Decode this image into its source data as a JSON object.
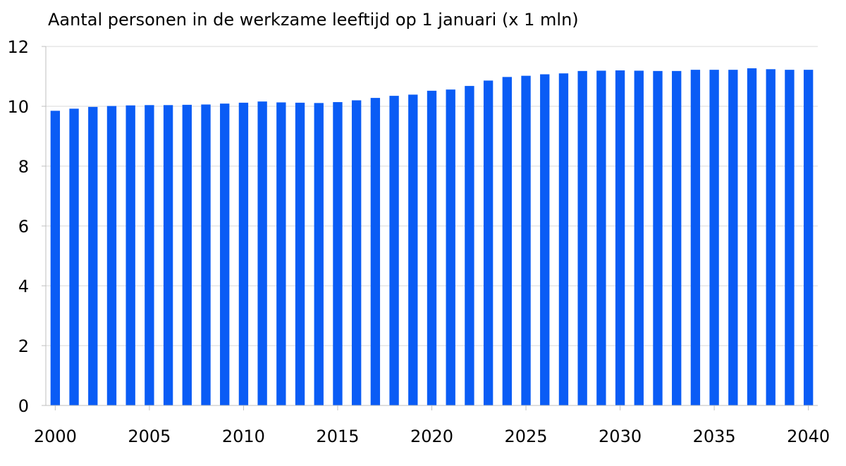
{
  "chart_data": {
    "type": "bar",
    "title": "Aantal personen in de werkzame leeftijd op 1 januari (x 1 mln)",
    "xlabel": "",
    "ylabel": "",
    "ylim": [
      0,
      12
    ],
    "y_ticks": [
      0,
      2,
      4,
      6,
      8,
      10,
      12
    ],
    "x_tick_labels": [
      "2000",
      "2005",
      "2010",
      "2015",
      "2020",
      "2025",
      "2030",
      "2035",
      "2040"
    ],
    "grid": true,
    "legend": "none",
    "bar_color": "#0a5cf5",
    "categories": [
      "2000",
      "2001",
      "2002",
      "2003",
      "2004",
      "2005",
      "2006",
      "2007",
      "2008",
      "2009",
      "2010",
      "2011",
      "2012",
      "2013",
      "2014",
      "2015",
      "2016",
      "2017",
      "2018",
      "2019",
      "2020",
      "2021",
      "2022",
      "2023",
      "2024",
      "2025",
      "2026",
      "2027",
      "2028",
      "2029",
      "2030",
      "2031",
      "2032",
      "2033",
      "2034",
      "2035",
      "2036",
      "2037",
      "2038",
      "2039",
      "2040"
    ],
    "values": [
      9.85,
      9.92,
      9.98,
      10.01,
      10.03,
      10.04,
      10.04,
      10.05,
      10.06,
      10.09,
      10.12,
      10.16,
      10.13,
      10.12,
      10.11,
      10.14,
      10.2,
      10.28,
      10.35,
      10.39,
      10.52,
      10.56,
      10.68,
      10.86,
      10.98,
      11.02,
      11.07,
      11.1,
      11.18,
      11.19,
      11.2,
      11.19,
      11.18,
      11.18,
      11.22,
      11.22,
      11.22,
      11.27,
      11.24,
      11.22,
      11.22
    ]
  }
}
